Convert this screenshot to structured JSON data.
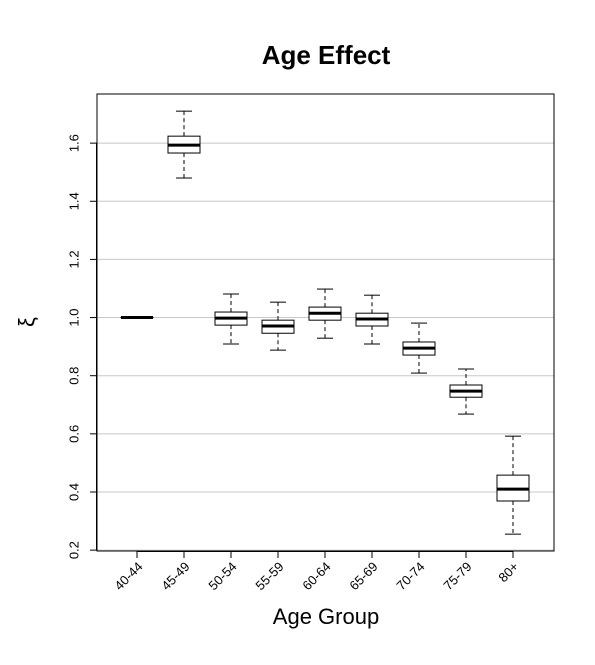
{
  "chart_data": {
    "type": "box",
    "title": "Age Effect",
    "xlabel": "Age Group",
    "ylabel": "ξ",
    "categories": [
      "40-44",
      "45-49",
      "50-54",
      "55-59",
      "60-64",
      "65-69",
      "70-74",
      "75-79",
      "80+"
    ],
    "min": [
      1.0,
      1.48,
      0.909,
      0.888,
      0.929,
      0.909,
      0.809,
      0.668,
      0.255
    ],
    "q1": [
      1.0,
      1.566,
      0.974,
      0.946,
      0.991,
      0.971,
      0.871,
      0.726,
      0.369
    ],
    "median": [
      1.0,
      1.593,
      0.998,
      0.971,
      1.015,
      0.995,
      0.895,
      0.747,
      0.41
    ],
    "q3": [
      1.0,
      1.624,
      1.019,
      0.991,
      1.036,
      1.015,
      0.916,
      0.768,
      0.458
    ],
    "max": [
      1.0,
      1.71,
      1.081,
      1.053,
      1.098,
      1.077,
      0.981,
      0.823,
      0.592
    ],
    "color": "#000000",
    "fill": "#ffffff",
    "ylim": [
      0.197,
      1.769
    ],
    "yticks": [
      0.2,
      0.4,
      0.6,
      0.8,
      {
        "value": 1.0,
        "label": "1.0"
      },
      1.2,
      1.4,
      1.6
    ],
    "grid": true,
    "grid_color": "#c8c8c8"
  }
}
